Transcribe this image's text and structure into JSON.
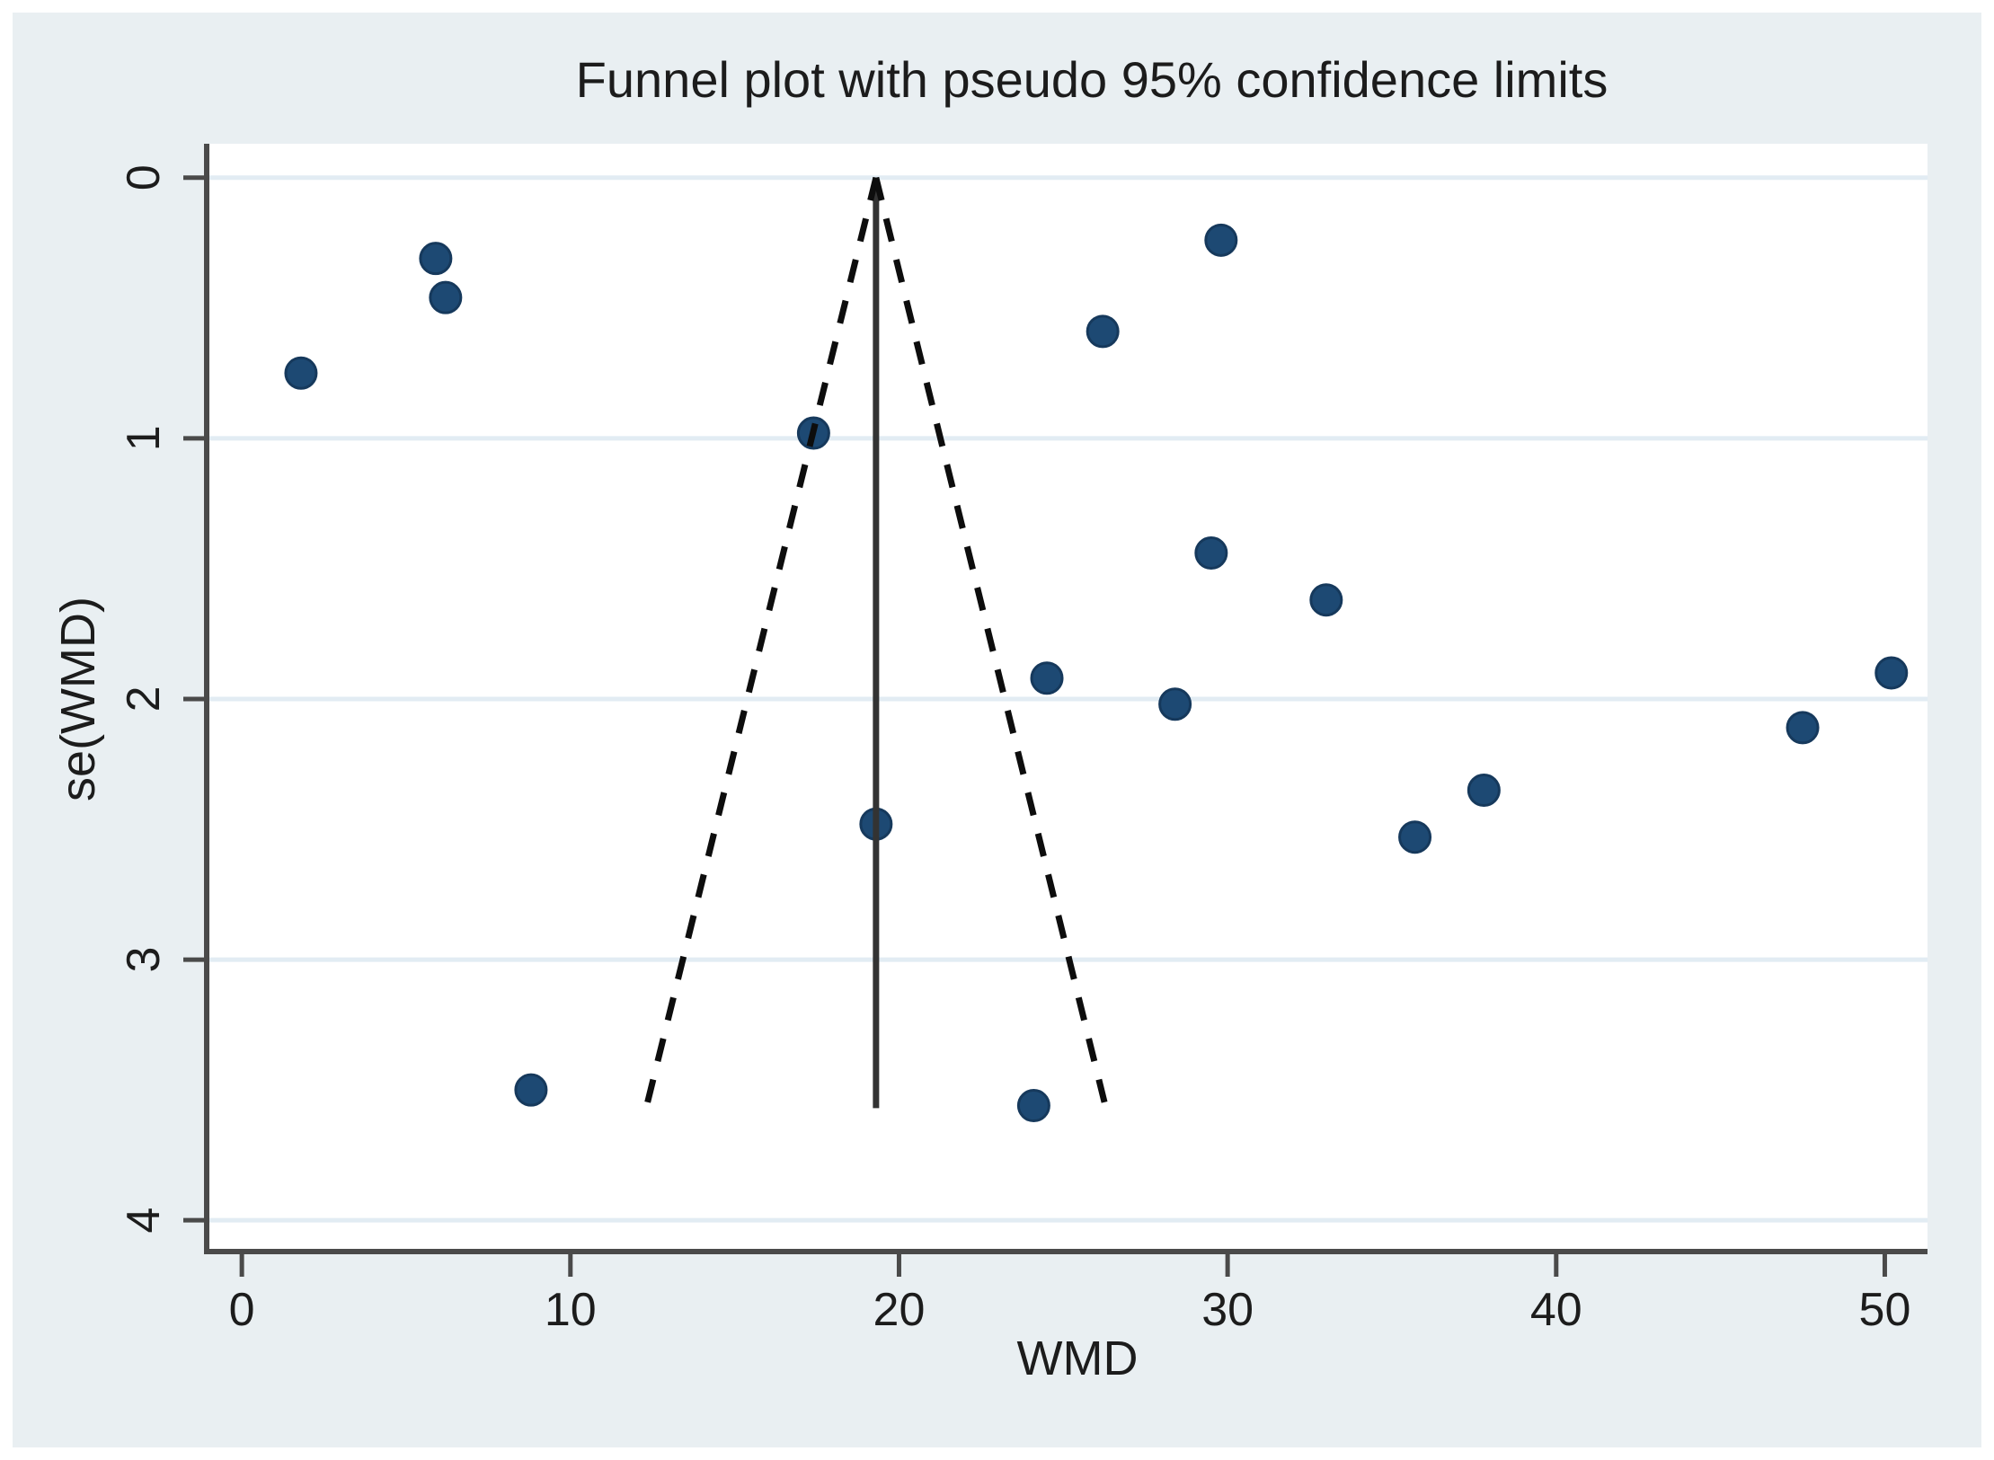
{
  "chart_data": {
    "type": "scatter",
    "title": "Funnel plot with pseudo 95% confidence limits",
    "xlabel": "WMD",
    "ylabel": "se(WMD)",
    "x_ticks": [
      0,
      10,
      20,
      30,
      40,
      50
    ],
    "y_ticks": [
      0,
      1,
      2,
      3,
      4
    ],
    "xlim": [
      -1.07,
      51.3
    ],
    "ylim": [
      -0.13,
      4.12
    ],
    "y_axis_direction": "reversed (0 at top, 4 at bottom)",
    "grid": true,
    "legend": null,
    "points": [
      [
        1.8,
        0.75
      ],
      [
        5.9,
        0.31
      ],
      [
        6.2,
        0.46
      ],
      [
        17.4,
        0.98
      ],
      [
        29.8,
        0.24
      ],
      [
        26.2,
        0.59
      ],
      [
        29.5,
        1.44
      ],
      [
        33.0,
        1.62
      ],
      [
        24.5,
        1.92
      ],
      [
        28.4,
        2.02
      ],
      [
        50.2,
        1.9
      ],
      [
        47.5,
        2.11
      ],
      [
        37.8,
        2.35
      ],
      [
        35.7,
        2.53
      ],
      [
        19.3,
        2.48
      ],
      [
        8.8,
        3.5
      ],
      [
        24.1,
        3.56
      ]
    ],
    "funnel": {
      "center": 19.3,
      "z": 1.96,
      "se_min": 0,
      "se_max": 3.57,
      "left_line_style": "dashed",
      "right_line_style": "dashed",
      "center_line_style": "solid"
    },
    "colors": {
      "figure_background": "#e9eff2",
      "plot_background": "#ffffff",
      "gridline": "#e2ecf3",
      "axis": "#4a4a4a",
      "tick_text": "#1c1c1c",
      "marker_fill": "#1d4973",
      "marker_edge": "#16395c",
      "funnel_dashed": "#0d0d0d",
      "center_line": "#333333"
    }
  }
}
